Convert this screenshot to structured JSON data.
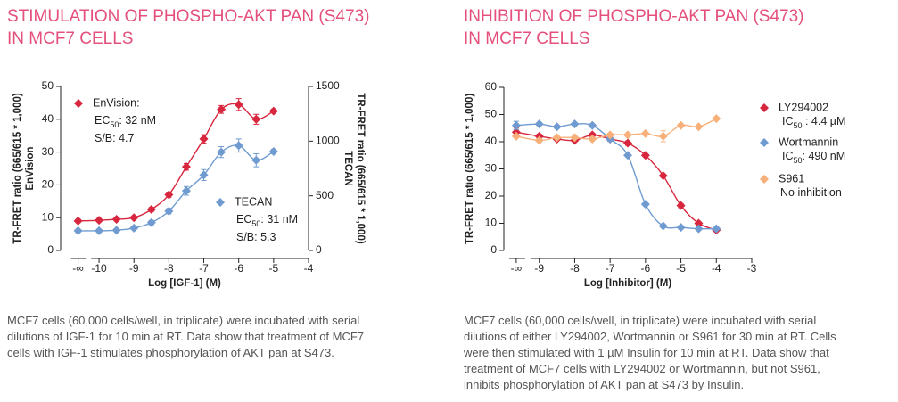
{
  "chart_data": [
    {
      "type": "scatter",
      "title": [
        "STIMULATION OF PHOSPHO-AKT PAN (S473)",
        "IN MCF7 CELLS"
      ],
      "caption": [
        "MCF7 cells (60,000 cells/well, in triplicate) were incubated with serial",
        "dilutions of IGF-1 for 10 min at RT. Data show that treatment of MCF7",
        "cells with IGF-1 stimulates phosphorylation of AKT pan at S473."
      ],
      "x_label": "Log [IGF-1] (M)",
      "y_label": [
        "TR-FRET ratio (665/615 * 1,000)",
        "EnVision"
      ],
      "y2_label": [
        "TR-FRET ratio (665/615 * 1,000)",
        "TECAN"
      ],
      "xlim": [
        -11.1,
        -4
      ],
      "xticks": [
        {
          "value": -10.6,
          "label": "-∞"
        },
        -10,
        -9,
        -8,
        -7,
        -6,
        -5,
        -4
      ],
      "ylim": [
        0,
        50
      ],
      "yticks": [
        0,
        10,
        20,
        30,
        40,
        50
      ],
      "y2lim": [
        0,
        1500
      ],
      "y2ticks": [
        0,
        500,
        1000,
        1500
      ],
      "x": [
        -10.6,
        -10,
        -9.5,
        -9,
        -8.5,
        -8,
        -7.5,
        -7,
        -6.5,
        -6,
        -5.5,
        -5
      ],
      "series": [
        {
          "name": "EnVision:",
          "color": "#d7263d",
          "axis": "y",
          "values": [
            9,
            9.2,
            9.5,
            10,
            12.5,
            17,
            25.5,
            34,
            43,
            44.5,
            40,
            42.5
          ],
          "errors": [
            0.5,
            0.5,
            0.5,
            0.5,
            0.6,
            0.8,
            1,
            1.3,
            1.2,
            1.8,
            1.5,
            0.6
          ],
          "notes": [
            {
              "text": "EC",
              "sub": "50",
              "after": ": 32 nM"
            },
            {
              "text": "S/B: 4.7"
            }
          ]
        },
        {
          "name": "TECAN",
          "color": "#6f9bd1",
          "axis": "y2",
          "values": [
            180,
            180,
            185,
            205,
            255,
            360,
            545,
            690,
            900,
            960,
            825,
            905
          ],
          "errors": [
            15,
            15,
            15,
            15,
            20,
            25,
            40,
            50,
            50,
            60,
            60,
            20
          ],
          "notes": [
            {
              "text": "EC",
              "sub": "50",
              "after": ": 31 nM"
            },
            {
              "text": "S/B: 5.3"
            }
          ]
        }
      ]
    },
    {
      "type": "scatter",
      "title": [
        "INHIBITION OF PHOSPHO-AKT PAN (S473)",
        "IN MCF7 CELLS"
      ],
      "caption": [
        "MCF7 cells (60,000 cells/well, in triplicate) were incubated with serial",
        "dilutions of either LY294002, Wortmannin or S961 for 30 min at RT. Cells",
        "were then stimulated with 1 µM Insulin for 10 min at RT. Data show that",
        "treatment of MCF7 cells with LY294002 or Wortmannin, but not S961,",
        "inhibits phosphorylation of AKT pan at S473 by Insulin."
      ],
      "x_label": "Log [Inhibitor] (M)",
      "y_label": [
        "TR-FRET ratio (665/615 * 1,000)"
      ],
      "xlim": [
        -10,
        -3
      ],
      "xticks": [
        {
          "value": -9.65,
          "label": "-∞"
        },
        -9,
        -8,
        -7,
        -6,
        -5,
        -4,
        -3
      ],
      "ylim": [
        0,
        60
      ],
      "yticks": [
        0,
        10,
        20,
        30,
        40,
        50,
        60
      ],
      "x": [
        -9.65,
        -9,
        -8.5,
        -8,
        -7.5,
        -7,
        -6.5,
        -6,
        -5.5,
        -5,
        -4.5,
        -4
      ],
      "series": [
        {
          "name": "LY294002",
          "color": "#d7263d",
          "axis": "y",
          "values": [
            43.5,
            42,
            41,
            40.5,
            42.5,
            41,
            39.5,
            35,
            27.5,
            16.5,
            10,
            7.5
          ],
          "errors": [
            1.5,
            0.8,
            0.5,
            0.5,
            0.6,
            0.8,
            0.8,
            0.6,
            0.6,
            0.8,
            0.6,
            0.5
          ],
          "notes": [
            {
              "text": "IC",
              "sub": "50",
              "after": " : 4.4 µM"
            }
          ]
        },
        {
          "name": "Wortmannin",
          "color": "#6f9bd1",
          "axis": "y",
          "values": [
            46,
            46.5,
            45.5,
            46.5,
            46,
            41,
            35,
            17,
            9,
            8.5,
            8,
            8
          ],
          "errors": [
            1.5,
            0.5,
            0.5,
            0.5,
            0.5,
            0.8,
            0.6,
            0.6,
            0.5,
            0.5,
            0.5,
            0.5
          ],
          "notes": [
            {
              "text": "IC",
              "sub": "50",
              "after": ": 490 nM"
            }
          ]
        },
        {
          "name": "S961",
          "color": "#f7b07a",
          "axis": "y",
          "values": [
            42,
            40.5,
            41.5,
            41.5,
            41,
            42.5,
            42.5,
            43,
            42,
            46,
            45.5,
            48.5
          ],
          "errors": [
            0.5,
            0.5,
            0.5,
            0.5,
            0.5,
            0.5,
            0.5,
            0.6,
            2,
            0.6,
            0.5,
            0.6
          ],
          "notes": [
            {
              "text": "No inhibition"
            }
          ]
        }
      ]
    }
  ]
}
